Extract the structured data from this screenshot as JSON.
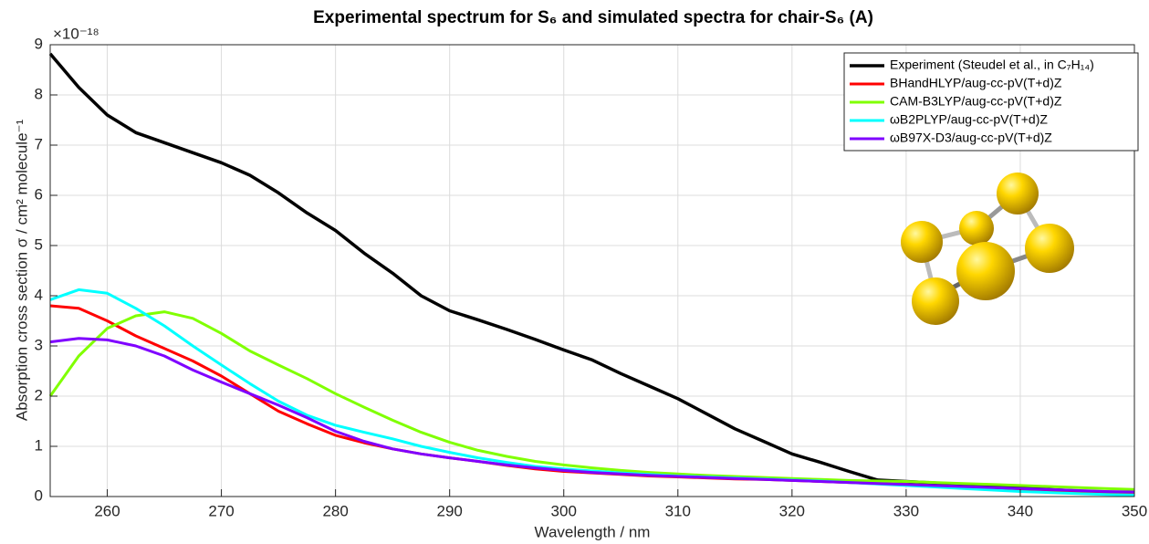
{
  "chart_data": {
    "type": "line",
    "title": "Experimental spectrum for S₆ and simulated spectra for chair-S₆ (A)",
    "x_label": "Wavelength / nm",
    "y_label": "Absorption cross section σ / cm² molecule⁻¹",
    "y_multiplier": "×10⁻¹⁸",
    "xlim": [
      255,
      350
    ],
    "xticks": [
      260,
      270,
      280,
      290,
      300,
      310,
      320,
      330,
      340,
      350
    ],
    "ylim": [
      0,
      9
    ],
    "yticks": [
      0,
      1,
      2,
      3,
      4,
      5,
      6,
      7,
      8,
      9
    ],
    "grid": true,
    "legend": "upper right",
    "x": [
      255,
      257.5,
      260,
      262.5,
      265,
      267.5,
      270,
      272.5,
      275,
      277.5,
      280,
      282.5,
      285,
      287.5,
      290,
      292.5,
      295,
      297.5,
      300,
      302.5,
      305,
      307.5,
      310,
      312.5,
      315,
      317.5,
      320,
      322.5,
      325,
      327.5,
      330,
      332.5,
      335,
      337.5,
      340,
      342.5,
      345,
      347.5,
      350
    ],
    "series": [
      {
        "name": "Experiment (Steudel et al., in C₇H₁₄)",
        "color": "#000000",
        "width": 3.5,
        "values": [
          8.82,
          8.15,
          7.6,
          7.25,
          7.05,
          6.85,
          6.65,
          6.4,
          6.05,
          5.65,
          5.3,
          4.85,
          4.45,
          4.0,
          3.7,
          3.52,
          3.33,
          3.13,
          2.92,
          2.72,
          2.45,
          2.2,
          1.95,
          1.65,
          1.35,
          1.1,
          0.85,
          0.68,
          0.5,
          0.33,
          0.3,
          0.27,
          0.24,
          0.21,
          0.18,
          0.14,
          0.11,
          0.08,
          0.06
        ]
      },
      {
        "name": "BHandHLYP/aug-cc-pV(T+d)Z",
        "color": "#ff0000",
        "width": 3,
        "values": [
          3.8,
          3.75,
          3.5,
          3.2,
          2.95,
          2.7,
          2.4,
          2.05,
          1.7,
          1.45,
          1.22,
          1.07,
          0.95,
          0.85,
          0.77,
          0.7,
          0.62,
          0.55,
          0.5,
          0.47,
          0.44,
          0.41,
          0.39,
          0.37,
          0.35,
          0.34,
          0.32,
          0.3,
          0.28,
          0.26,
          0.24,
          0.21,
          0.18,
          0.15,
          0.12,
          0.1,
          0.08,
          0.07,
          0.06
        ]
      },
      {
        "name": "CAM-B3LYP/aug-cc-pV(T+d)Z",
        "color": "#80ff00",
        "width": 3,
        "values": [
          2.0,
          2.8,
          3.35,
          3.6,
          3.68,
          3.55,
          3.25,
          2.9,
          2.62,
          2.35,
          2.05,
          1.78,
          1.52,
          1.28,
          1.08,
          0.92,
          0.8,
          0.7,
          0.63,
          0.57,
          0.52,
          0.48,
          0.45,
          0.42,
          0.4,
          0.38,
          0.36,
          0.34,
          0.32,
          0.31,
          0.3,
          0.28,
          0.26,
          0.24,
          0.22,
          0.2,
          0.18,
          0.16,
          0.14
        ]
      },
      {
        "name": "ωB2PLYP/aug-cc-pV(T+d)Z",
        "color": "#00ffff",
        "width": 3,
        "values": [
          3.92,
          4.12,
          4.05,
          3.75,
          3.4,
          3.0,
          2.62,
          2.25,
          1.9,
          1.62,
          1.42,
          1.28,
          1.15,
          1.0,
          0.88,
          0.77,
          0.68,
          0.6,
          0.55,
          0.51,
          0.47,
          0.44,
          0.41,
          0.39,
          0.37,
          0.35,
          0.33,
          0.31,
          0.28,
          0.25,
          0.22,
          0.19,
          0.16,
          0.13,
          0.1,
          0.08,
          0.06,
          0.04,
          0.03
        ]
      },
      {
        "name": "ωB97X-D3/aug-cc-pV(T+d)Z",
        "color": "#7f00ff",
        "width": 3,
        "values": [
          3.08,
          3.15,
          3.12,
          3.0,
          2.8,
          2.52,
          2.28,
          2.05,
          1.82,
          1.57,
          1.3,
          1.1,
          0.95,
          0.85,
          0.77,
          0.7,
          0.63,
          0.57,
          0.52,
          0.48,
          0.45,
          0.42,
          0.4,
          0.38,
          0.36,
          0.34,
          0.32,
          0.3,
          0.28,
          0.26,
          0.24,
          0.22,
          0.2,
          0.18,
          0.16,
          0.14,
          0.12,
          0.1,
          0.09
        ]
      }
    ]
  }
}
